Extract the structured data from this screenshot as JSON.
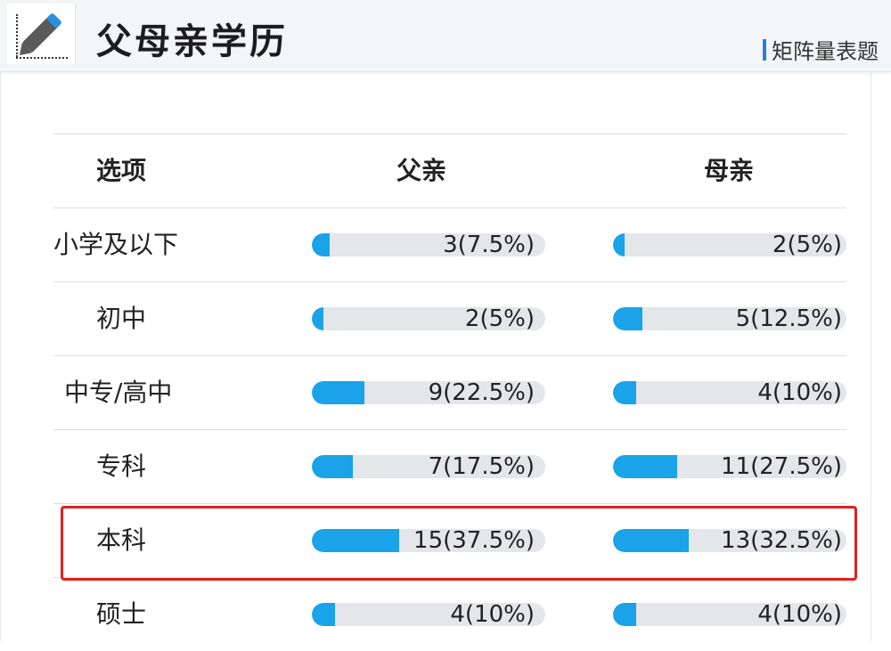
{
  "header": {
    "title": "父母亲学历",
    "question_type": "矩阵量表题"
  },
  "table": {
    "columns": [
      "选项",
      "父亲",
      "母亲"
    ],
    "rows": [
      {
        "label": "小学及以下",
        "father": "3(7.5%)",
        "father_pct": 7.5,
        "mother": "2(5%)",
        "mother_pct": 5
      },
      {
        "label": "初中",
        "father": "2(5%)",
        "father_pct": 5,
        "mother": "5(12.5%)",
        "mother_pct": 12.5
      },
      {
        "label": "中专/高中",
        "father": "9(22.5%)",
        "father_pct": 22.5,
        "mother": "4(10%)",
        "mother_pct": 10
      },
      {
        "label": "专科",
        "father": "7(17.5%)",
        "father_pct": 17.5,
        "mother": "11(27.5%)",
        "mother_pct": 27.5
      },
      {
        "label": "本科",
        "father": "15(37.5%)",
        "father_pct": 37.5,
        "mother": "13(32.5%)",
        "mother_pct": 32.5
      },
      {
        "label": "硕士",
        "father": "4(10%)",
        "father_pct": 10,
        "mother": "4(10%)",
        "mother_pct": 10
      }
    ]
  },
  "colors": {
    "bar_fill": "#1aa3e8",
    "bar_track": "#e4e6ea",
    "highlight": "#e02020",
    "tag_accent": "#2a7fd4"
  },
  "highlighted_row": "本科"
}
